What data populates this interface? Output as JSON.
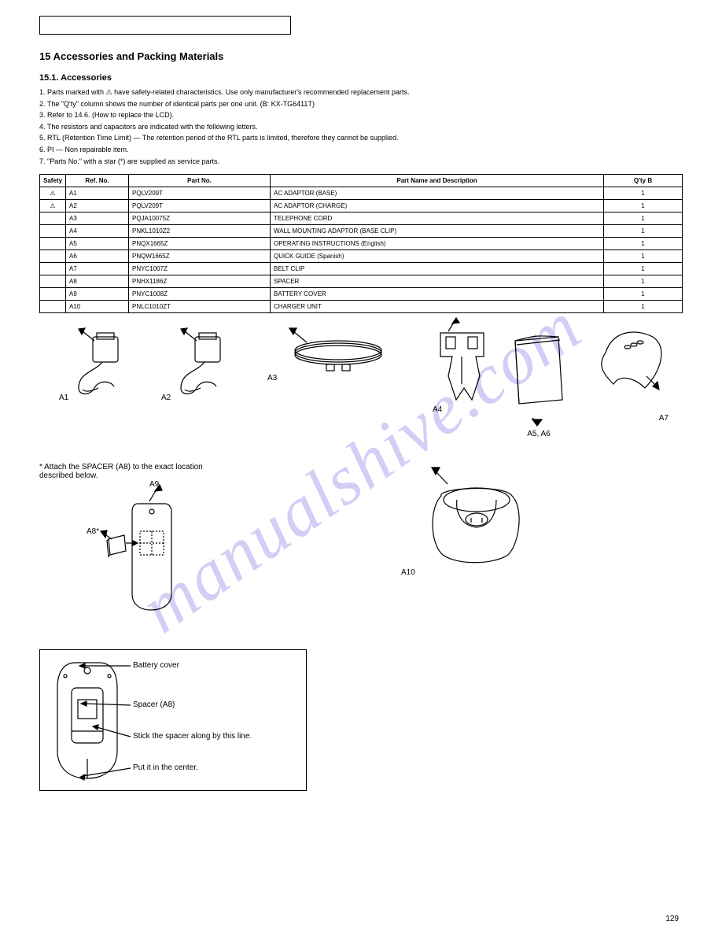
{
  "watermark_text": "manualshive.com",
  "section_number": "15",
  "section_title": "Accessories and Packing Materials",
  "subsection_number": "15.1.",
  "subsection_title": "Accessories",
  "notes": {
    "n1": "1. Parts marked with ⚠ have safety-related characteristics. Use only manufacturer's recommended replacement parts.",
    "n2": "2. The \"Q'ty\" column shows the number of identical parts per one unit. (B: KX-TG6411T)",
    "n3": "3. Refer to 14.6. (How to replace the LCD).",
    "n4": "4. The resistors and capacitors are indicated with the following letters.",
    "n5": "5. RTL (Retention Time Limit) — The retention period of the RTL parts is limited, therefore they cannot be supplied.",
    "n6": "6. PI — Non repairable item.",
    "n7": "7. \"Parts No.\" with a star (*) are supplied as service parts."
  },
  "table": {
    "headers": {
      "safety": "Safety",
      "ref": "Ref. No.",
      "part": "Part No.",
      "desc": "Part Name and Description",
      "qty": "Q'ty  B"
    },
    "rows": [
      {
        "safety": "⚠",
        "ref": "A1",
        "part": "PQLV209T",
        "desc": "AC ADAPTOR (BASE)",
        "qty": "1"
      },
      {
        "safety": "⚠",
        "ref": "A2",
        "part": "PQLV209T",
        "desc": "AC ADAPTOR (CHARGE)",
        "qty": "1"
      },
      {
        "safety": "",
        "ref": "A3",
        "part": "PQJA10075Z",
        "desc": "TELEPHONE CORD",
        "qty": "1"
      },
      {
        "safety": "",
        "ref": "A4",
        "part": "PNKL1010Z2",
        "desc": "WALL MOUNTING ADAPTOR (BASE CLIP)",
        "qty": "1"
      },
      {
        "safety": "",
        "ref": "A5",
        "part": "PNQX1665Z",
        "desc": "OPERATING INSTRUCTIONS (English)",
        "qty": "1"
      },
      {
        "safety": "",
        "ref": "A6",
        "part": "PNQW1665Z",
        "desc": "QUICK GUIDE (Spanish)",
        "qty": "1"
      },
      {
        "safety": "",
        "ref": "A7",
        "part": "PNYC1007Z",
        "desc": "BELT CLIP",
        "qty": "1"
      },
      {
        "safety": "",
        "ref": "A8",
        "part": "PNHX1186Z",
        "desc": "SPACER",
        "qty": "1"
      },
      {
        "safety": "",
        "ref": "A9",
        "part": "PNYC1008Z",
        "desc": "BATTERY COVER",
        "qty": "1"
      },
      {
        "safety": "",
        "ref": "A10",
        "part": "PNLC1010ZT",
        "desc": "CHARGER UNIT",
        "qty": "1"
      }
    ]
  },
  "spacer_note": "* Attach the SPACER (A8) to the exact location\n  described below.",
  "detail": {
    "l1": "Battery cover",
    "l2": "Spacer (A8)",
    "l3": "Stick the spacer along by this line.",
    "l4": "Put it in the center."
  },
  "labels": {
    "a1": "A1",
    "a2": "A2",
    "a3": "A3",
    "a4": "A4",
    "a56": "A5, A6",
    "a7": "A7",
    "a8": "A8*",
    "a9": "A9",
    "a10": "A10"
  },
  "page_number": "129"
}
